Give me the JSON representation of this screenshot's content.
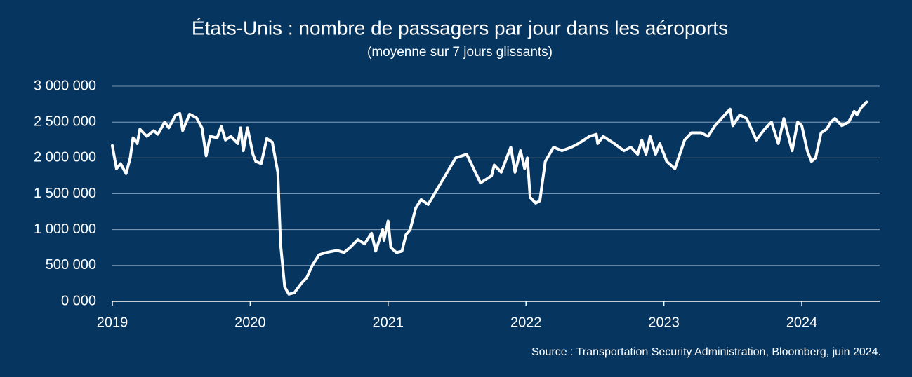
{
  "chart_data": {
    "type": "line",
    "title": "États-Unis : nombre de passagers par jour dans les aéroports",
    "subtitle": "(moyenne sur 7 jours glissants)",
    "source": "Source : Transportation Security Administration, Bloomberg, juin 2024.",
    "color": "#ffffff",
    "x": [
      2019.0,
      2019.03,
      2019.06,
      2019.1,
      2019.13,
      2019.15,
      2019.18,
      2019.2,
      2019.25,
      2019.3,
      2019.33,
      2019.38,
      2019.41,
      2019.46,
      2019.49,
      2019.51,
      2019.56,
      2019.61,
      2019.65,
      2019.68,
      2019.71,
      2019.76,
      2019.79,
      2019.82,
      2019.86,
      2019.91,
      2019.93,
      2019.95,
      2019.98,
      2020.02,
      2020.04,
      2020.08,
      2020.12,
      2020.16,
      2020.2,
      2020.22,
      2020.25,
      2020.28,
      2020.32,
      2020.37,
      2020.41,
      2020.45,
      2020.5,
      2020.55,
      2020.63,
      2020.68,
      2020.73,
      2020.78,
      2020.83,
      2020.88,
      2020.91,
      2020.96,
      2020.97,
      2021.0,
      2021.02,
      2021.06,
      2021.1,
      2021.13,
      2021.16,
      2021.2,
      2021.24,
      2021.29,
      2021.49,
      2021.57,
      2021.67,
      2021.75,
      2021.77,
      2021.82,
      2021.89,
      2021.92,
      2021.96,
      2021.99,
      2022.01,
      2022.03,
      2022.07,
      2022.1,
      2022.14,
      2022.2,
      2022.26,
      2022.33,
      2022.38,
      2022.46,
      2022.51,
      2022.52,
      2022.56,
      2022.64,
      2022.71,
      2022.76,
      2022.81,
      2022.84,
      2022.87,
      2022.9,
      2022.94,
      2022.97,
      2023.02,
      2023.08,
      2023.15,
      2023.2,
      2023.27,
      2023.32,
      2023.37,
      2023.48,
      2023.5,
      2023.55,
      2023.6,
      2023.67,
      2023.73,
      2023.78,
      2023.83,
      2023.87,
      2023.93,
      2023.97,
      2024.0,
      2024.04,
      2024.07,
      2024.1,
      2024.14,
      2024.18,
      2024.21,
      2024.24,
      2024.29,
      2024.34,
      2024.38,
      2024.4,
      2024.43,
      2024.47
    ],
    "values": [
      2170000,
      1850000,
      1920000,
      1780000,
      2000000,
      2280000,
      2200000,
      2400000,
      2300000,
      2380000,
      2330000,
      2500000,
      2420000,
      2600000,
      2620000,
      2380000,
      2610000,
      2560000,
      2420000,
      2030000,
      2300000,
      2280000,
      2440000,
      2250000,
      2300000,
      2200000,
      2420000,
      2100000,
      2420000,
      2050000,
      1950000,
      1920000,
      2270000,
      2220000,
      1800000,
      800000,
      200000,
      100000,
      120000,
      250000,
      330000,
      500000,
      650000,
      680000,
      710000,
      680000,
      760000,
      860000,
      800000,
      950000,
      700000,
      1000000,
      850000,
      1120000,
      750000,
      680000,
      700000,
      930000,
      1000000,
      1300000,
      1420000,
      1350000,
      2000000,
      2050000,
      1650000,
      1750000,
      1900000,
      1800000,
      2150000,
      1800000,
      2100000,
      1850000,
      2000000,
      1450000,
      1370000,
      1400000,
      1950000,
      2150000,
      2100000,
      2150000,
      2200000,
      2300000,
      2330000,
      2200000,
      2300000,
      2200000,
      2100000,
      2150000,
      2050000,
      2250000,
      2050000,
      2300000,
      2050000,
      2200000,
      1950000,
      1850000,
      2250000,
      2350000,
      2350000,
      2300000,
      2450000,
      2680000,
      2450000,
      2600000,
      2550000,
      2250000,
      2400000,
      2500000,
      2200000,
      2550000,
      2100000,
      2500000,
      2450000,
      2100000,
      1950000,
      2000000,
      2350000,
      2400000,
      2500000,
      2550000,
      2450000,
      2500000,
      2650000,
      2600000,
      2700000,
      2780000
    ],
    "xlim": [
      2019,
      2024.565
    ],
    "xticks": [
      2019,
      2020,
      2021,
      2022,
      2023,
      2024
    ],
    "ylim": [
      0,
      3000000
    ],
    "yticks": [
      {
        "value": 0,
        "label": "0 000"
      },
      {
        "value": 500000,
        "label": "500 000"
      },
      {
        "value": 1000000,
        "label": "1 000 000"
      },
      {
        "value": 1500000,
        "label": "1 500 000"
      },
      {
        "value": 2000000,
        "label": "2 000 000"
      },
      {
        "value": 2500000,
        "label": "2 500 000"
      },
      {
        "value": 3000000,
        "label": "3 000 000"
      }
    ],
    "grid": true
  }
}
